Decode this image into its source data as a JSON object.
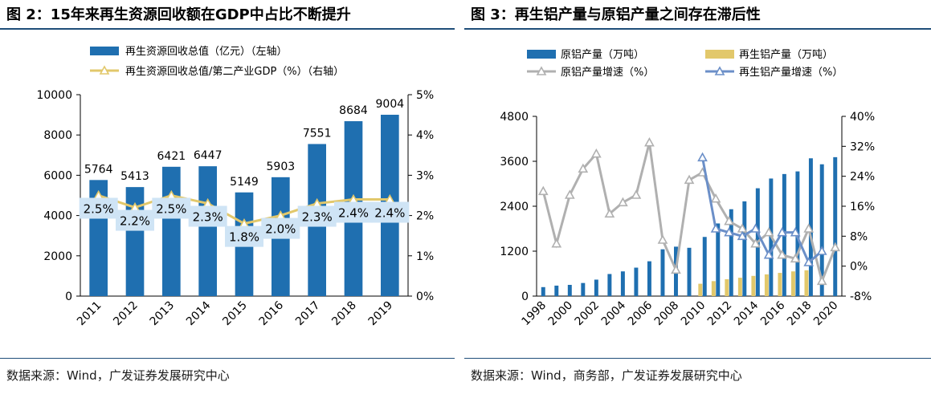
{
  "panels": [
    {
      "title": "图 2：15年来再生资源回收额在GDP中占比不断提升",
      "source": "数据来源：Wind，广发证券发展研究中心",
      "chart_data": {
        "type": "bar",
        "categories": [
          "2011",
          "2012",
          "2013",
          "2014",
          "2015",
          "2016",
          "2017",
          "2018",
          "2019"
        ],
        "series": [
          {
            "name": "再生资源回收总值（亿元）（左轴）",
            "type": "bar",
            "axis": "left",
            "color": "#1f6fb0",
            "values": [
              5764,
              5413,
              6421,
              6447,
              5149,
              5903,
              7551,
              8684,
              9004
            ]
          },
          {
            "name": "再生资源回收总值/第二产业GDP（%）（右轴）",
            "type": "line",
            "axis": "right",
            "color": "#e2c86b",
            "values": [
              2.5,
              2.2,
              2.5,
              2.3,
              1.8,
              2.0,
              2.3,
              2.4,
              2.4
            ]
          }
        ],
        "bar_labels": [
          "5764",
          "5413",
          "6421",
          "6447",
          "5149",
          "5903",
          "7551",
          "8684",
          "9004"
        ],
        "line_labels": [
          "2.5%",
          "2.2%",
          "2.5%",
          "2.3%",
          "1.8%",
          "2.0%",
          "2.3%",
          "2.4%",
          "2.4%"
        ],
        "ylim": [
          0,
          10000
        ],
        "yticks": [
          "0",
          "2000",
          "4000",
          "6000",
          "8000",
          "10000"
        ],
        "y2lim": [
          0,
          5
        ],
        "y2ticks": [
          "0%",
          "1%",
          "2%",
          "3%",
          "4%",
          "5%"
        ],
        "legend_position": "top-left"
      }
    },
    {
      "title": "图 3：再生铝产量与原铝产量之间存在滞后性",
      "source": "数据来源：Wind，商务部，广发证券发展研究中心",
      "chart_data": {
        "type": "bar",
        "categories": [
          "1998",
          "1999",
          "2000",
          "2001",
          "2002",
          "2003",
          "2004",
          "2005",
          "2006",
          "2007",
          "2008",
          "2009",
          "2010",
          "2011",
          "2012",
          "2013",
          "2014",
          "2015",
          "2016",
          "2017",
          "2018",
          "2019",
          "2020"
        ],
        "tick_labels": [
          "1998",
          "2000",
          "2002",
          "2004",
          "2006",
          "2008",
          "2010",
          "2012",
          "2014",
          "2016",
          "2018",
          "2020"
        ],
        "series": [
          {
            "name": "原铝产量（万吨）",
            "type": "bar",
            "axis": "left",
            "color": "#1f6fb0",
            "values": [
              240,
              280,
              300,
              350,
              440,
              590,
              660,
              760,
              930,
              1250,
              1320,
              1290,
              1580,
              1940,
              2320,
              2530,
              2880,
              3140,
              3260,
              3330,
              3680,
              3520,
              3710
            ]
          },
          {
            "name": "再生铝产量（万吨）",
            "type": "bar",
            "axis": "left",
            "color": "#e2c86b",
            "values": [
              null,
              null,
              null,
              null,
              null,
              null,
              null,
              null,
              null,
              null,
              null,
              null,
              330,
              400,
              450,
              490,
              540,
              580,
              620,
              660,
              690,
              null,
              null
            ]
          },
          {
            "name": "原铝产量增速（%）",
            "type": "line",
            "axis": "right",
            "color": "#b0b0b0",
            "values": [
              20,
              6,
              19,
              26,
              30,
              14,
              17,
              19,
              33,
              7,
              -1,
              23,
              25,
              18,
              12,
              10,
              6,
              9,
              3,
              2,
              10,
              -4,
              5
            ]
          },
          {
            "name": "再生铝产量增速（%）",
            "type": "line",
            "axis": "right",
            "color": "#6b8fc8",
            "values": [
              null,
              null,
              null,
              null,
              null,
              null,
              null,
              null,
              null,
              null,
              null,
              null,
              29,
              10,
              9,
              8,
              10,
              3,
              9,
              9,
              1,
              4,
              null
            ]
          }
        ],
        "ylim": [
          0,
          4800
        ],
        "yticks": [
          "0",
          "1200",
          "2400",
          "3600",
          "4800"
        ],
        "y2lim": [
          -8,
          40
        ],
        "y2ticks": [
          "-8%",
          "0%",
          "8%",
          "16%",
          "24%",
          "32%",
          "40%"
        ],
        "legend_position": "top"
      }
    }
  ]
}
